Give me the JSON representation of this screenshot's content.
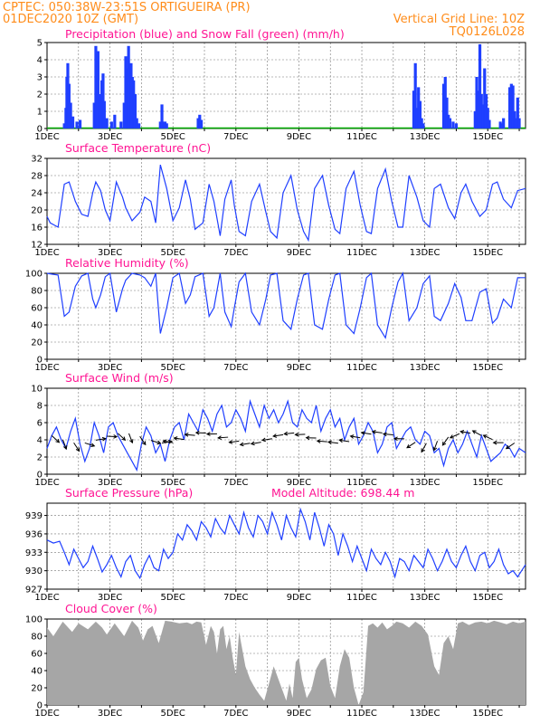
{
  "header": {
    "line1": "CPTEC:   050:38W-23:51S   ORTIGUEIRA (PR)",
    "line2_left": "01DEC2020 10Z (GMT)",
    "line2_right": "Vertical Grid Line: 10Z",
    "line3_right": "TQ0126L028"
  },
  "x_axis": {
    "tick_labels": [
      "1DEC",
      "3DEC",
      "5DEC",
      "7DEC",
      "9DEC",
      "11DEC",
      "13DEC",
      "15DEC"
    ],
    "tick_days": [
      1,
      3,
      5,
      7,
      9,
      11,
      13,
      15
    ],
    "range_days": [
      1,
      16.2
    ]
  },
  "colors": {
    "header": "#ff8c1a",
    "title": "#ff1493",
    "precip": "#1f3fff",
    "snow": "#00aa00",
    "line": "#1f3fff",
    "cloud": "#a6a6a6"
  },
  "chart_data": [
    {
      "type": "bar",
      "name": "precipitation",
      "title": "Precipitation (blue) and Snow Fall (green) (mm/h)",
      "ylim": [
        0,
        5
      ],
      "yticks": [
        0,
        1,
        2,
        3,
        4,
        5
      ],
      "x_days": [
        1.55,
        1.6,
        1.63,
        1.66,
        1.7,
        1.75,
        1.82,
        1.95,
        2.05,
        2.5,
        2.55,
        2.58,
        2.62,
        2.66,
        2.7,
        2.74,
        2.78,
        2.82,
        2.9,
        3.05,
        3.15,
        3.35,
        3.45,
        3.5,
        3.55,
        3.59,
        3.63,
        3.67,
        3.71,
        3.75,
        3.8,
        3.85,
        3.92,
        4.6,
        4.65,
        4.7,
        4.75,
        4.8,
        5.8,
        5.85,
        5.9,
        12.65,
        12.7,
        12.75,
        12.8,
        12.85,
        12.9,
        12.95,
        13.6,
        13.65,
        13.7,
        13.75,
        13.8,
        13.9,
        14.0,
        14.6,
        14.65,
        14.7,
        14.75,
        14.8,
        14.85,
        14.9,
        14.95,
        15.0,
        15.05,
        15.4,
        15.45,
        15.5,
        15.7,
        15.75,
        15.8,
        15.85,
        15.9,
        15.95,
        16.0
      ],
      "values": [
        0.3,
        1.2,
        3.0,
        3.8,
        2.6,
        1.5,
        0.7,
        0.4,
        0.5,
        1.5,
        4.8,
        3.6,
        4.5,
        2.0,
        1.0,
        2.8,
        3.2,
        1.6,
        0.6,
        0.4,
        0.8,
        0.4,
        1.5,
        4.2,
        3.5,
        4.8,
        3.7,
        3.8,
        3.0,
        2.8,
        2.0,
        0.6,
        0.3,
        0.4,
        1.4,
        0.4,
        0.4,
        0.3,
        0.6,
        0.8,
        0.5,
        2.2,
        3.8,
        1.2,
        2.4,
        1.6,
        0.6,
        0.3,
        2.6,
        3.0,
        1.8,
        0.8,
        0.6,
        0.4,
        0.3,
        1.0,
        3.0,
        2.2,
        4.9,
        2.0,
        1.4,
        3.5,
        2.0,
        1.2,
        0.5,
        0.4,
        0.3,
        0.6,
        2.4,
        2.6,
        2.5,
        1.0,
        0.6,
        1.8,
        0.6
      ],
      "snow_values": "0 throughout"
    },
    {
      "type": "line",
      "name": "surface-temperature",
      "title": "Surface Temperature (nC)",
      "ylim": [
        12,
        32
      ],
      "yticks": [
        12,
        16,
        20,
        24,
        28,
        32
      ],
      "x": [
        1.0,
        1.1,
        1.35,
        1.55,
        1.7,
        1.9,
        2.1,
        2.3,
        2.45,
        2.55,
        2.7,
        2.85,
        3.0,
        3.2,
        3.4,
        3.5,
        3.7,
        3.95,
        4.1,
        4.3,
        4.45,
        4.6,
        4.8,
        5.0,
        5.2,
        5.4,
        5.55,
        5.7,
        5.95,
        6.15,
        6.3,
        6.5,
        6.65,
        6.85,
        6.95,
        7.1,
        7.3,
        7.5,
        7.75,
        7.95,
        8.1,
        8.3,
        8.5,
        8.75,
        8.95,
        9.15,
        9.3,
        9.5,
        9.75,
        9.95,
        10.15,
        10.3,
        10.5,
        10.75,
        10.95,
        11.15,
        11.3,
        11.5,
        11.75,
        11.95,
        12.15,
        12.3,
        12.5,
        12.75,
        12.95,
        13.15,
        13.3,
        13.5,
        13.75,
        13.95,
        14.15,
        14.3,
        14.5,
        14.75,
        14.95,
        15.15,
        15.3,
        15.5,
        15.75,
        15.95,
        16.2
      ],
      "values": [
        18.5,
        17.0,
        16.0,
        26.0,
        26.5,
        22.0,
        19.0,
        18.5,
        24.0,
        26.5,
        24.5,
        20.0,
        17.5,
        26.5,
        23.0,
        20.5,
        17.5,
        19.5,
        23.0,
        22.0,
        17.0,
        30.5,
        25.0,
        17.5,
        20.5,
        27.0,
        22.5,
        15.5,
        17.0,
        26.0,
        22.0,
        14.0,
        22.5,
        27.0,
        21.0,
        15.0,
        14.0,
        22.0,
        26.0,
        19.5,
        15.0,
        13.5,
        24.0,
        28.0,
        20.0,
        15.0,
        13.0,
        25.0,
        28.0,
        21.0,
        15.5,
        14.5,
        25.0,
        29.0,
        21.0,
        15.0,
        14.5,
        25.0,
        29.5,
        22.0,
        16.0,
        16.0,
        28.0,
        23.0,
        17.5,
        16.0,
        25.0,
        26.0,
        20.5,
        18.0,
        24.0,
        26.0,
        22.0,
        18.5,
        20.0,
        26.0,
        26.5,
        22.5,
        20.5,
        24.5,
        25.0
      ]
    },
    {
      "type": "line",
      "name": "relative-humidity",
      "title": "Relative Humidity (%)",
      "ylim": [
        0,
        100
      ],
      "yticks": [
        0,
        20,
        40,
        60,
        80,
        100
      ],
      "x": [
        1.0,
        1.15,
        1.35,
        1.55,
        1.7,
        1.9,
        2.1,
        2.3,
        2.45,
        2.55,
        2.7,
        2.85,
        3.0,
        3.2,
        3.4,
        3.5,
        3.7,
        3.95,
        4.1,
        4.3,
        4.45,
        4.6,
        4.8,
        5.0,
        5.2,
        5.4,
        5.55,
        5.7,
        5.95,
        6.15,
        6.3,
        6.5,
        6.65,
        6.85,
        6.95,
        7.1,
        7.3,
        7.5,
        7.75,
        7.95,
        8.1,
        8.3,
        8.5,
        8.75,
        8.95,
        9.15,
        9.3,
        9.5,
        9.75,
        9.95,
        10.15,
        10.3,
        10.5,
        10.75,
        10.95,
        11.15,
        11.3,
        11.5,
        11.75,
        11.95,
        12.15,
        12.3,
        12.5,
        12.75,
        12.95,
        13.15,
        13.3,
        13.5,
        13.75,
        13.95,
        14.15,
        14.3,
        14.5,
        14.75,
        14.95,
        15.15,
        15.3,
        15.5,
        15.75,
        15.95,
        16.2
      ],
      "values": [
        100,
        99,
        98,
        50,
        55,
        85,
        97,
        100,
        70,
        60,
        75,
        96,
        100,
        55,
        82,
        92,
        100,
        98,
        95,
        85,
        100,
        30,
        60,
        95,
        100,
        65,
        75,
        96,
        100,
        50,
        60,
        100,
        55,
        38,
        60,
        90,
        100,
        55,
        40,
        70,
        98,
        100,
        45,
        35,
        70,
        98,
        100,
        40,
        35,
        70,
        98,
        100,
        40,
        30,
        60,
        95,
        100,
        40,
        25,
        60,
        90,
        100,
        45,
        60,
        88,
        97,
        50,
        45,
        65,
        88,
        72,
        45,
        45,
        78,
        82,
        42,
        48,
        70,
        60,
        95,
        95
      ]
    },
    {
      "type": "line",
      "name": "surface-wind",
      "title": "Surface Wind (m/s)",
      "ylim": [
        0,
        10
      ],
      "yticks": [
        0,
        2,
        4,
        6,
        8,
        10
      ],
      "x": [
        1.0,
        1.15,
        1.3,
        1.45,
        1.6,
        1.75,
        1.9,
        2.05,
        2.2,
        2.35,
        2.5,
        2.65,
        2.8,
        2.95,
        3.1,
        3.25,
        3.4,
        3.55,
        3.7,
        3.85,
        4.0,
        4.15,
        4.3,
        4.45,
        4.6,
        4.75,
        4.9,
        5.05,
        5.2,
        5.35,
        5.5,
        5.65,
        5.8,
        5.95,
        6.1,
        6.25,
        6.4,
        6.55,
        6.7,
        6.85,
        7.0,
        7.15,
        7.3,
        7.45,
        7.6,
        7.75,
        7.9,
        8.05,
        8.2,
        8.35,
        8.5,
        8.65,
        8.8,
        8.95,
        9.1,
        9.25,
        9.4,
        9.55,
        9.7,
        9.85,
        10.0,
        10.15,
        10.3,
        10.45,
        10.6,
        10.75,
        10.9,
        11.05,
        11.2,
        11.35,
        11.5,
        11.65,
        11.8,
        11.95,
        12.1,
        12.25,
        12.4,
        12.55,
        12.7,
        12.85,
        13.0,
        13.15,
        13.3,
        13.45,
        13.6,
        13.75,
        13.9,
        14.05,
        14.2,
        14.35,
        14.5,
        14.65,
        14.8,
        14.95,
        15.1,
        15.25,
        15.4,
        15.55,
        15.7,
        15.85,
        16.0,
        16.2
      ],
      "values": [
        3.0,
        4.5,
        5.5,
        4.0,
        3.0,
        5.0,
        6.5,
        3.5,
        1.5,
        3.0,
        6.0,
        4.5,
        2.5,
        5.5,
        6.0,
        4.5,
        3.5,
        2.5,
        1.5,
        0.5,
        3.5,
        5.5,
        4.5,
        2.5,
        3.5,
        1.5,
        4.0,
        5.5,
        6.0,
        4.0,
        7.0,
        6.0,
        5.0,
        7.5,
        6.5,
        5.0,
        7.0,
        8.0,
        5.5,
        6.0,
        7.5,
        6.5,
        5.0,
        8.5,
        7.0,
        5.5,
        8.0,
        6.5,
        7.5,
        6.0,
        7.0,
        8.5,
        6.0,
        5.5,
        7.5,
        6.5,
        6.0,
        8.0,
        5.0,
        6.5,
        7.5,
        5.5,
        6.5,
        4.0,
        5.5,
        6.5,
        3.5,
        4.5,
        6.0,
        5.0,
        2.5,
        3.5,
        5.5,
        6.0,
        3.0,
        4.0,
        5.0,
        5.5,
        4.0,
        3.5,
        5.0,
        4.5,
        2.5,
        3.0,
        1.0,
        3.0,
        4.0,
        2.5,
        3.5,
        5.0,
        3.5,
        2.0,
        4.5,
        3.0,
        1.5,
        2.0,
        2.5,
        3.5,
        3.0,
        2.0,
        3.0,
        2.5
      ]
    },
    {
      "type": "line",
      "name": "surface-pressure",
      "title": "Surface Pressure (hPa)",
      "subtitle": "Model Altitude:  698.44  m",
      "ylim": [
        927,
        941
      ],
      "yticks": [
        927,
        930,
        933,
        936,
        939
      ],
      "x": [
        1.0,
        1.2,
        1.4,
        1.55,
        1.7,
        1.85,
        2.0,
        2.15,
        2.3,
        2.45,
        2.6,
        2.75,
        2.9,
        3.05,
        3.2,
        3.35,
        3.5,
        3.65,
        3.8,
        3.95,
        4.1,
        4.25,
        4.4,
        4.55,
        4.7,
        4.85,
        5.0,
        5.15,
        5.3,
        5.45,
        5.6,
        5.75,
        5.9,
        6.05,
        6.2,
        6.35,
        6.5,
        6.65,
        6.8,
        6.95,
        7.1,
        7.25,
        7.4,
        7.55,
        7.7,
        7.85,
        8.0,
        8.15,
        8.3,
        8.45,
        8.6,
        8.75,
        8.9,
        9.05,
        9.2,
        9.35,
        9.5,
        9.65,
        9.8,
        9.95,
        10.1,
        10.25,
        10.4,
        10.55,
        10.7,
        10.85,
        11.0,
        11.15,
        11.3,
        11.45,
        11.6,
        11.75,
        11.9,
        12.05,
        12.2,
        12.35,
        12.5,
        12.65,
        12.8,
        12.95,
        13.1,
        13.25,
        13.4,
        13.55,
        13.7,
        13.85,
        14.0,
        14.15,
        14.3,
        14.45,
        14.6,
        14.75,
        14.9,
        15.05,
        15.2,
        15.35,
        15.5,
        15.65,
        15.8,
        15.95,
        16.2
      ],
      "values": [
        935.0,
        934.5,
        934.8,
        933.0,
        931.0,
        933.5,
        932.0,
        930.5,
        931.5,
        934.0,
        932.0,
        929.8,
        931.0,
        932.5,
        930.5,
        929.0,
        931.5,
        932.5,
        930.0,
        928.8,
        931.0,
        932.5,
        930.5,
        930.0,
        933.5,
        932.0,
        933.0,
        936.0,
        935.0,
        937.5,
        936.5,
        935.0,
        938.0,
        937.0,
        935.5,
        938.5,
        937.0,
        936.0,
        939.0,
        937.5,
        936.0,
        939.5,
        937.0,
        935.5,
        939.0,
        938.0,
        936.0,
        939.5,
        937.5,
        935.0,
        939.0,
        937.0,
        935.5,
        940.0,
        938.0,
        935.0,
        939.5,
        937.0,
        934.0,
        937.5,
        936.0,
        932.5,
        936.0,
        934.0,
        931.5,
        934.0,
        932.0,
        930.0,
        933.5,
        932.0,
        931.0,
        933.0,
        931.5,
        929.0,
        932.0,
        931.5,
        930.0,
        932.5,
        931.5,
        930.5,
        933.5,
        932.0,
        930.0,
        931.5,
        933.5,
        931.5,
        930.5,
        932.5,
        934.0,
        931.5,
        930.0,
        932.5,
        933.0,
        930.5,
        931.5,
        933.5,
        931.0,
        929.5,
        930.0,
        929.0,
        931.0
      ]
    },
    {
      "type": "area",
      "name": "cloud-cover",
      "title": "Cloud Cover (%)",
      "ylim": [
        0,
        100
      ],
      "yticks": [
        0,
        20,
        40,
        60,
        80,
        100
      ],
      "x": [
        1.0,
        1.2,
        1.5,
        1.8,
        2.0,
        2.3,
        2.55,
        2.75,
        2.9,
        3.15,
        3.45,
        3.7,
        3.9,
        4.05,
        4.2,
        4.35,
        4.55,
        4.75,
        4.95,
        5.2,
        5.45,
        5.6,
        5.75,
        5.9,
        6.05,
        6.2,
        6.3,
        6.4,
        6.5,
        6.6,
        6.7,
        6.8,
        6.9,
        7.0,
        7.1,
        7.2,
        7.3,
        7.45,
        7.6,
        7.75,
        7.9,
        8.05,
        8.2,
        8.35,
        8.5,
        8.6,
        8.7,
        8.8,
        8.9,
        9.0,
        9.1,
        9.25,
        9.4,
        9.55,
        9.7,
        9.85,
        10.0,
        10.15,
        10.3,
        10.45,
        10.6,
        10.75,
        10.9,
        11.05,
        11.2,
        11.35,
        11.5,
        11.65,
        11.8,
        11.95,
        12.1,
        12.3,
        12.5,
        12.7,
        12.9,
        13.1,
        13.3,
        13.45,
        13.6,
        13.75,
        13.9,
        14.05,
        14.2,
        14.4,
        14.6,
        14.8,
        15.0,
        15.2,
        15.4,
        15.6,
        15.8,
        16.0,
        16.2
      ],
      "values": [
        90,
        80,
        97,
        85,
        95,
        88,
        97,
        90,
        82,
        95,
        80,
        98,
        90,
        75,
        88,
        92,
        72,
        98,
        97,
        95,
        96,
        94,
        97,
        96,
        70,
        92,
        85,
        60,
        88,
        92,
        65,
        80,
        55,
        35,
        85,
        65,
        45,
        30,
        20,
        12,
        5,
        25,
        45,
        30,
        15,
        5,
        25,
        8,
        50,
        55,
        30,
        8,
        18,
        42,
        52,
        55,
        22,
        8,
        45,
        65,
        55,
        20,
        0,
        15,
        92,
        95,
        90,
        96,
        88,
        92,
        97,
        95,
        90,
        97,
        92,
        82,
        45,
        35,
        72,
        80,
        65,
        95,
        97,
        93,
        96,
        97,
        95,
        98,
        96,
        94,
        97,
        95,
        97
      ]
    }
  ]
}
